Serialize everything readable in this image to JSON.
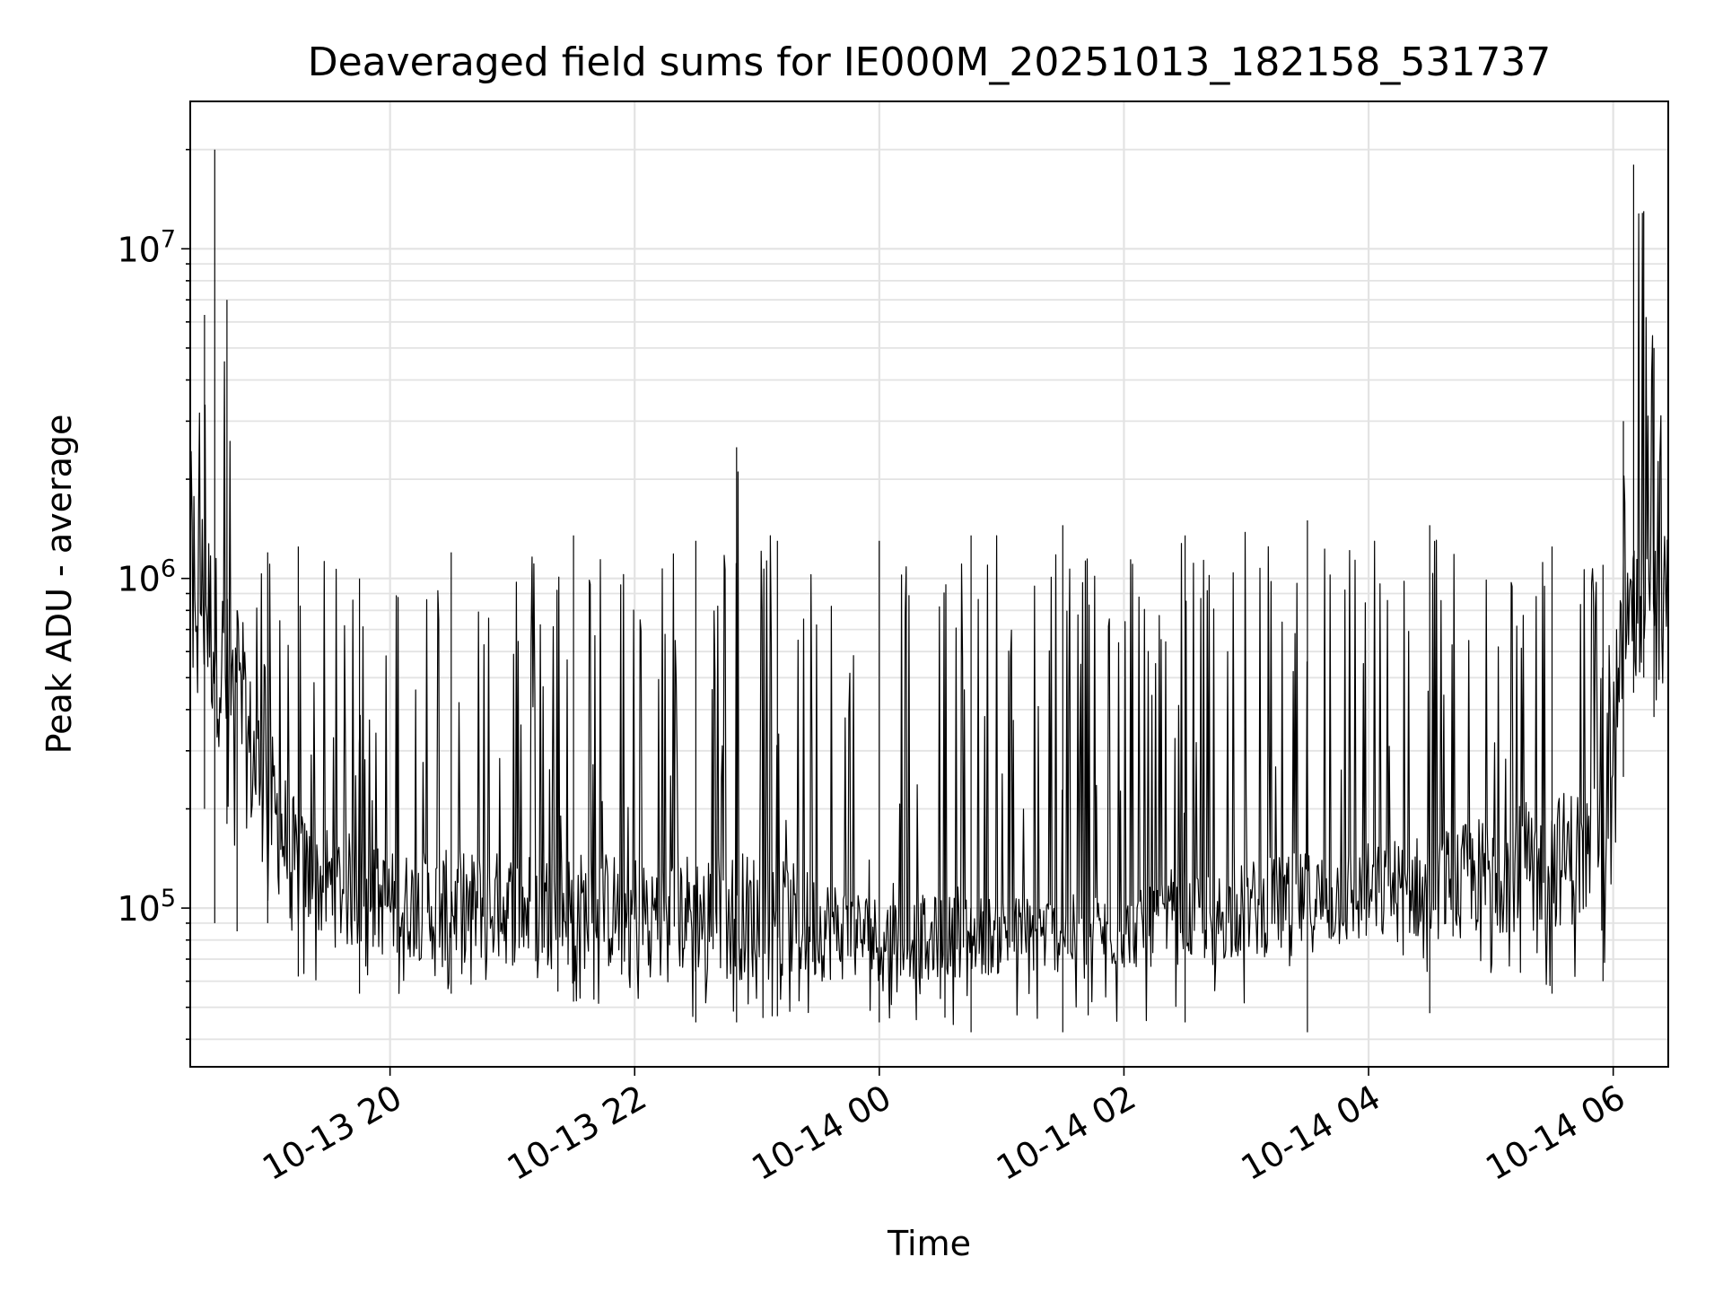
{
  "chart_data": {
    "type": "line",
    "title": "Deaveraged field sums for IE000M_20251013_182158_531737",
    "xlabel": "Time",
    "ylabel": "Peak ADU - average",
    "y_scale": "log",
    "ylim": [
      33000,
      28000000
    ],
    "xlim": [
      "2025-10-13 18:22",
      "2025-10-14 06:27"
    ],
    "grid": true,
    "x_ticks": [
      {
        "value": "2025-10-13 20:00",
        "label": "10-13 20"
      },
      {
        "value": "2025-10-13 22:00",
        "label": "10-13 22"
      },
      {
        "value": "2025-10-14 00:00",
        "label": "10-14 00"
      },
      {
        "value": "2025-10-14 02:00",
        "label": "10-14 02"
      },
      {
        "value": "2025-10-14 04:00",
        "label": "10-14 04"
      },
      {
        "value": "2025-10-14 06:00",
        "label": "10-14 06"
      }
    ],
    "y_ticks": [
      {
        "value": 100000,
        "base": "10",
        "exp": "5"
      },
      {
        "value": 1000000,
        "base": "10",
        "exp": "6"
      },
      {
        "value": 10000000,
        "base": "10",
        "exp": "7"
      }
    ],
    "series": [
      {
        "color": "#000000",
        "envelope": [
          {
            "x": "2025-10-13 18:22",
            "low": 450000,
            "high": 2000000
          },
          {
            "x": "2025-10-13 18:29",
            "low": 200000,
            "high": 6300000
          },
          {
            "x": "2025-10-13 18:34",
            "low": 90000,
            "high": 20000000
          },
          {
            "x": "2025-10-13 18:40",
            "low": 180000,
            "high": 7000000
          },
          {
            "x": "2025-10-13 18:45",
            "low": 85000,
            "high": 800000
          },
          {
            "x": "2025-10-13 19:00",
            "low": 90000,
            "high": 1200000
          },
          {
            "x": "2025-10-13 19:15",
            "low": 62000,
            "high": 1250000
          },
          {
            "x": "2025-10-13 19:45",
            "low": 55000,
            "high": 1000000
          },
          {
            "x": "2025-10-13 20:30",
            "low": 55000,
            "high": 1200000
          },
          {
            "x": "2025-10-13 21:30",
            "low": 52000,
            "high": 1350000
          },
          {
            "x": "2025-10-13 22:30",
            "low": 45000,
            "high": 1300000
          },
          {
            "x": "2025-10-13 22:50",
            "low": 45000,
            "high": 2500000
          },
          {
            "x": "2025-10-13 23:10",
            "low": 47000,
            "high": 1300000
          },
          {
            "x": "2025-10-14 00:00",
            "low": 45000,
            "high": 1300000
          },
          {
            "x": "2025-10-14 00:45",
            "low": 42000,
            "high": 1350000
          },
          {
            "x": "2025-10-14 01:30",
            "low": 42000,
            "high": 1450000
          },
          {
            "x": "2025-10-14 02:30",
            "low": 45000,
            "high": 1350000
          },
          {
            "x": "2025-10-14 03:30",
            "low": 42000,
            "high": 1500000
          },
          {
            "x": "2025-10-14 04:30",
            "low": 48000,
            "high": 1450000
          },
          {
            "x": "2025-10-14 05:30",
            "low": 55000,
            "high": 1250000
          },
          {
            "x": "2025-10-14 05:55",
            "low": 60000,
            "high": 1100000
          },
          {
            "x": "2025-10-14 06:05",
            "low": 250000,
            "high": 3000000
          },
          {
            "x": "2025-10-14 06:10",
            "low": 450000,
            "high": 18000000
          },
          {
            "x": "2025-10-14 06:15",
            "low": 500000,
            "high": 13000000
          },
          {
            "x": "2025-10-14 06:20",
            "low": 380000,
            "high": 5000000
          },
          {
            "x": "2025-10-14 06:27",
            "low": 500000,
            "high": 2000000
          }
        ],
        "typical_band": [
          {
            "x": "2025-10-13 18:22",
            "low": 600000,
            "high": 2500000
          },
          {
            "x": "2025-10-13 18:45",
            "low": 200000,
            "high": 700000
          },
          {
            "x": "2025-10-13 19:15",
            "low": 80000,
            "high": 200000
          },
          {
            "x": "2025-10-13 20:00",
            "low": 70000,
            "high": 150000
          },
          {
            "x": "2025-10-13 23:00",
            "low": 60000,
            "high": 150000
          },
          {
            "x": "2025-10-14 00:00",
            "low": 60000,
            "high": 110000
          },
          {
            "x": "2025-10-14 02:00",
            "low": 65000,
            "high": 110000
          },
          {
            "x": "2025-10-14 03:00",
            "low": 70000,
            "high": 140000
          },
          {
            "x": "2025-10-14 04:30",
            "low": 80000,
            "high": 170000
          },
          {
            "x": "2025-10-14 05:55",
            "low": 90000,
            "high": 250000
          },
          {
            "x": "2025-10-14 06:05",
            "low": 500000,
            "high": 1200000
          },
          {
            "x": "2025-10-14 06:27",
            "low": 700000,
            "high": 1500000
          }
        ]
      }
    ]
  }
}
